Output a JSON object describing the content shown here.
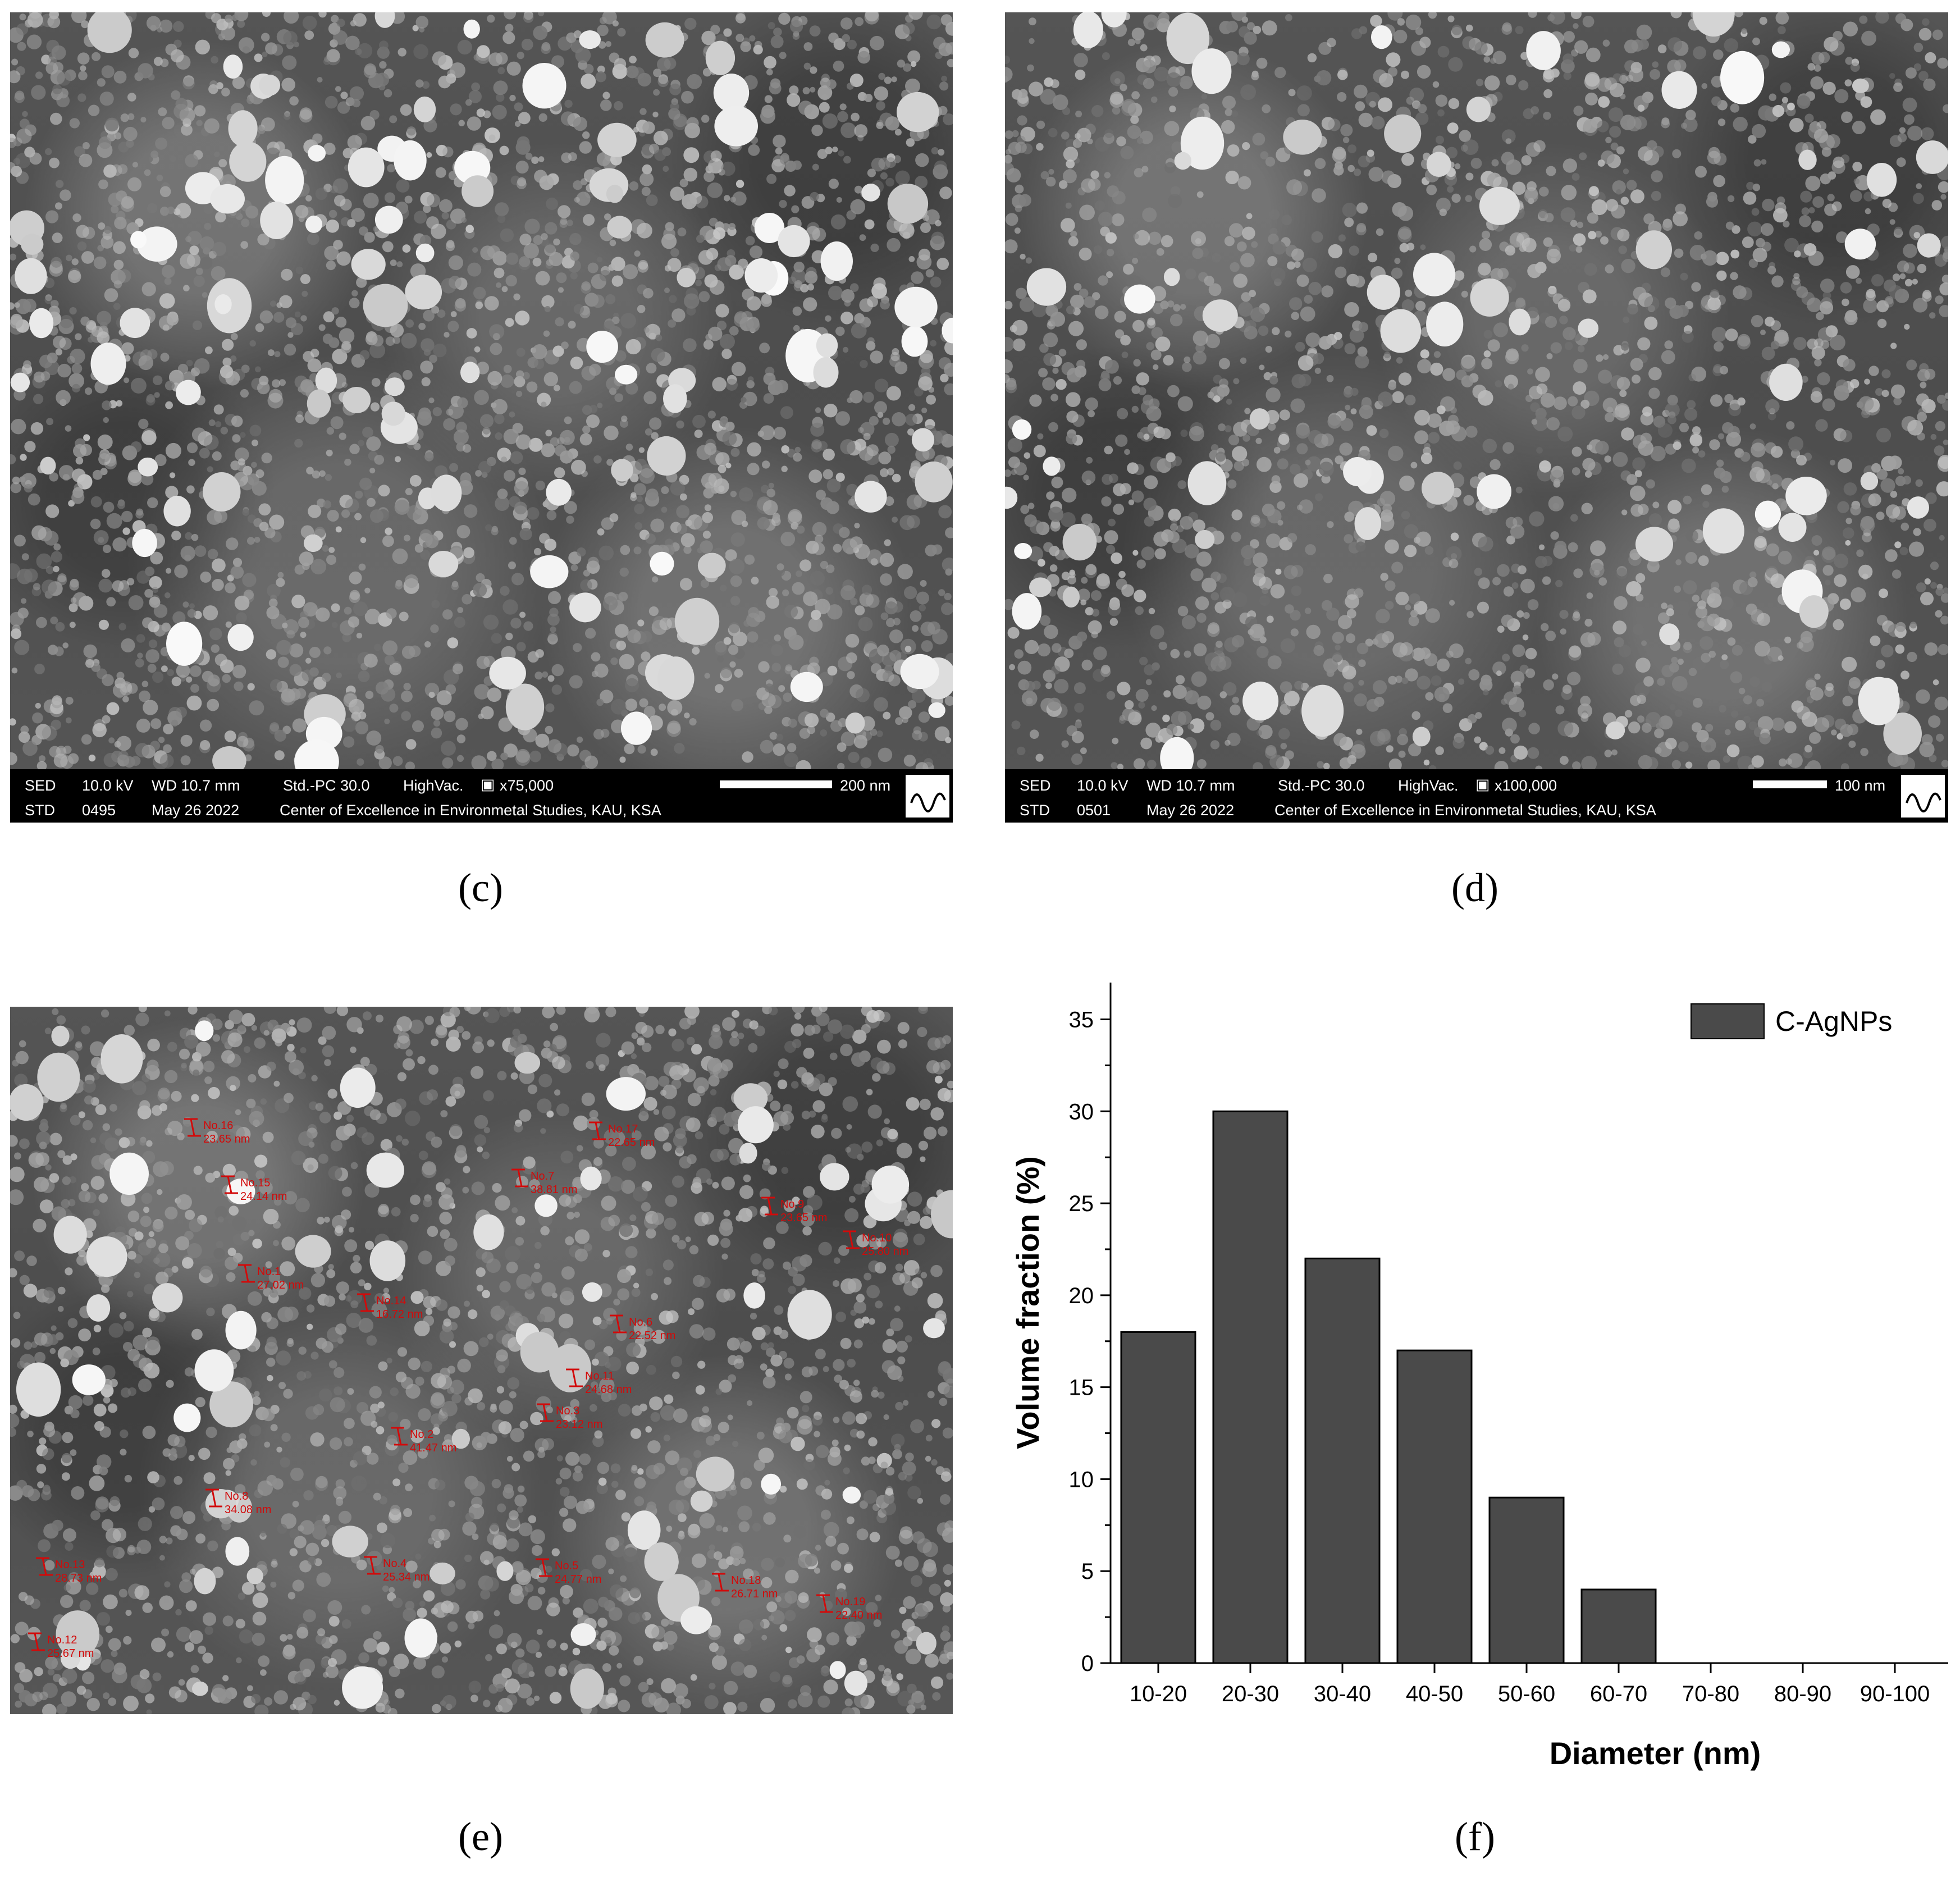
{
  "panels": {
    "c": {
      "label": "(c)",
      "info": {
        "sed": "SED",
        "kv": "10.0 kV",
        "wd": "WD 10.7 mm",
        "std_pc": "Std.-PC 30.0",
        "vac": "HighVac.",
        "mag": "x75,000",
        "scale": "200 nm",
        "std": "STD",
        "num": "0495",
        "date": "May 26 2022",
        "center": "Center of Excellence in Environmetal Studies, KAU, KSA"
      }
    },
    "d": {
      "label": "(d)",
      "info": {
        "sed": "SED",
        "kv": "10.0 kV",
        "wd": "WD 10.7 mm",
        "std_pc": "Std.-PC 30.0",
        "vac": "HighVac.",
        "mag": "x100,000",
        "scale": "100 nm",
        "std": "STD",
        "num": "0501",
        "date": "May 26 2022",
        "center": "Center of Excellence in Environmetal Studies, KAU, KSA"
      }
    },
    "e": {
      "label": "(e)",
      "measurements": [
        {
          "no": "No.16",
          "val": "23.65 nm"
        },
        {
          "no": "No.17",
          "val": "22.65 nm"
        },
        {
          "no": "No.15",
          "val": "24.14 nm"
        },
        {
          "no": "No.7",
          "val": "38.81 nm"
        },
        {
          "no": "No.9",
          "val": "23.65 nm"
        },
        {
          "no": "No.10",
          "val": "25.80 nm"
        },
        {
          "no": "No.1",
          "val": "27.02 nm"
        },
        {
          "no": "No.14",
          "val": "16.72 nm"
        },
        {
          "no": "No.6",
          "val": "22.52 nm"
        },
        {
          "no": "No.11",
          "val": "24.68 nm"
        },
        {
          "no": "No.3",
          "val": "23.12 nm"
        },
        {
          "no": "No.2",
          "val": "41.47 nm"
        },
        {
          "no": "No.8",
          "val": "34.08 nm"
        },
        {
          "no": "No.4",
          "val": "25.34 nm"
        },
        {
          "no": "No.5",
          "val": "24.77 nm"
        },
        {
          "no": "No.13",
          "val": "28.73 nm"
        },
        {
          "no": "No.18",
          "val": "26.71 nm"
        },
        {
          "no": "No.19",
          "val": "22.40 nm"
        },
        {
          "no": "No.12",
          "val": "25.67 nm"
        }
      ]
    },
    "f": {
      "label": "(f)"
    }
  },
  "chart_data": {
    "type": "bar",
    "categories": [
      "10-20",
      "20-30",
      "30-40",
      "40-50",
      "50-60",
      "60-70",
      "70-80",
      "80-90",
      "90-100"
    ],
    "series": [
      {
        "name": "C-AgNPs",
        "values": [
          18,
          30,
          22,
          17,
          9,
          4,
          0,
          0,
          0
        ],
        "color": "#4a4a4a"
      }
    ],
    "xlabel": "Diameter (nm)",
    "ylabel": "Volume fraction (%)",
    "ylim": [
      0,
      37
    ],
    "yticks": [
      0,
      5,
      10,
      15,
      20,
      25,
      30,
      35
    ],
    "legend": "top-right",
    "grid": false
  }
}
